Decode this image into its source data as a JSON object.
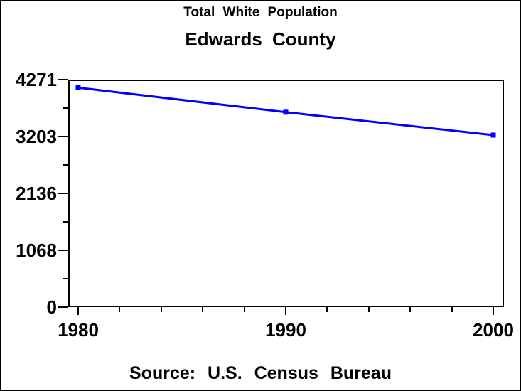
{
  "window": {
    "background": "#FFFFFF",
    "border_color": "#000000"
  },
  "chart_data": {
    "type": "line",
    "subtitle": "Total White Population",
    "title": "Edwards County",
    "source": "Source: U.S. Census Bureau",
    "xlabel": "",
    "ylabel": "",
    "x": [
      1980,
      1990,
      2000
    ],
    "series": [
      {
        "name": "Total White Population",
        "color": "#0000FF",
        "marker": "square",
        "values": [
          4120,
          3660,
          3230
        ]
      }
    ],
    "xlim": [
      1980,
      2000
    ],
    "ylim": [
      0,
      4271
    ],
    "yticks": [
      0,
      1068,
      2136,
      3203,
      4271
    ],
    "xticks": [
      1980,
      1990,
      2000
    ],
    "x_minor_ticks_per_interval": 4,
    "y_minor_ticks_per_interval": 1,
    "grid": false,
    "legend": "none",
    "frame": true,
    "axis_color": "#000000",
    "text_color": "#000000"
  }
}
